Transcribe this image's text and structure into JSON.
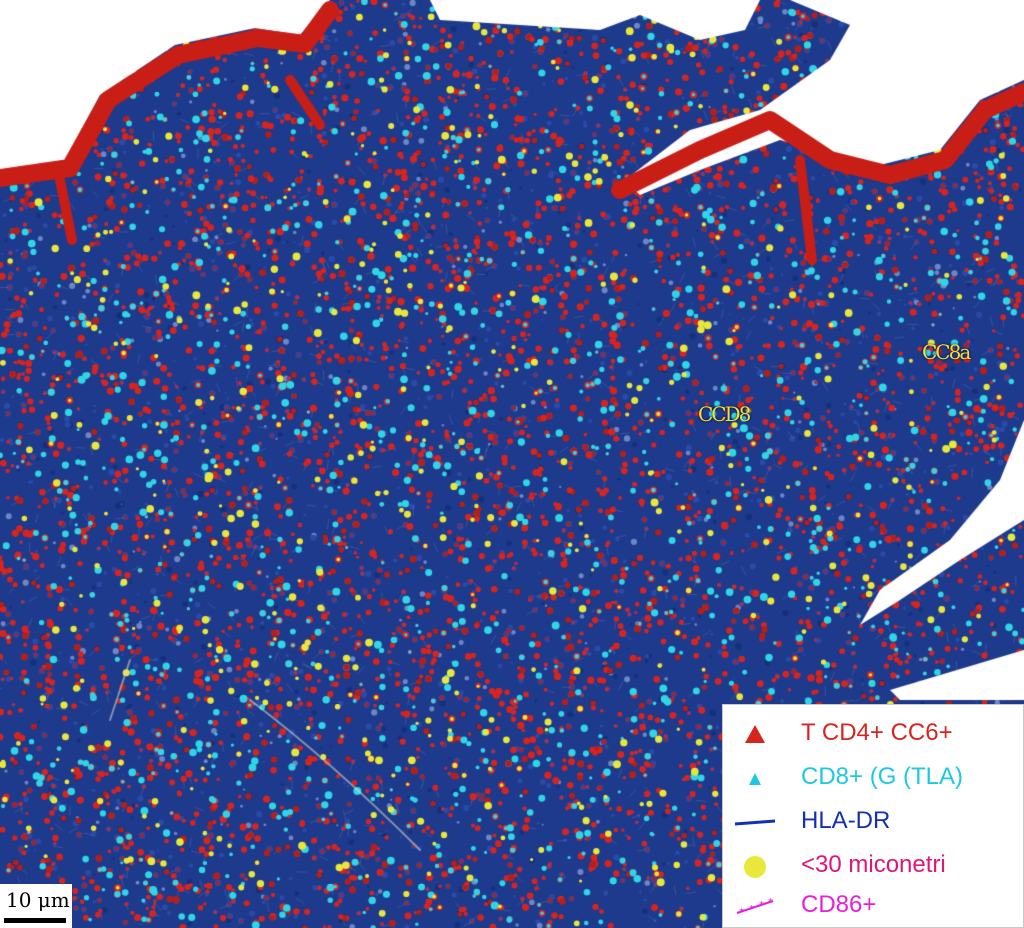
{
  "image": {
    "palette": {
      "background_blue": "#1d3a8c",
      "red_marker": "#d8241e",
      "cyan_marker": "#2fd6e6",
      "yellow_marker": "#e8e83a",
      "white_gap": "#ffffff",
      "epithelium_red": "#c81e16"
    }
  },
  "annotations": [
    {
      "text": "CCD8"
    },
    {
      "text": "CC8a"
    }
  ],
  "legend": {
    "items": [
      {
        "label": "T CD4+ CC6+",
        "color": "#d8241e",
        "symbol": "triangle-icon"
      },
      {
        "label": "CD8+ (G (TLA)",
        "color": "#1ec8e0",
        "symbol": "small-triangle-icon"
      },
      {
        "label": "HLA-DR",
        "color": "#1430b4",
        "symbol": "dash-icon"
      },
      {
        "label": "<30 miconetri",
        "color": "#e0147a",
        "symbol": "dot-icon",
        "symbol_color": "#e8e83a"
      },
      {
        "label": "CD86+",
        "color": "#e81ed8",
        "symbol": "star-line-icon"
      }
    ]
  },
  "scale_bar": {
    "label": "10 μm"
  }
}
